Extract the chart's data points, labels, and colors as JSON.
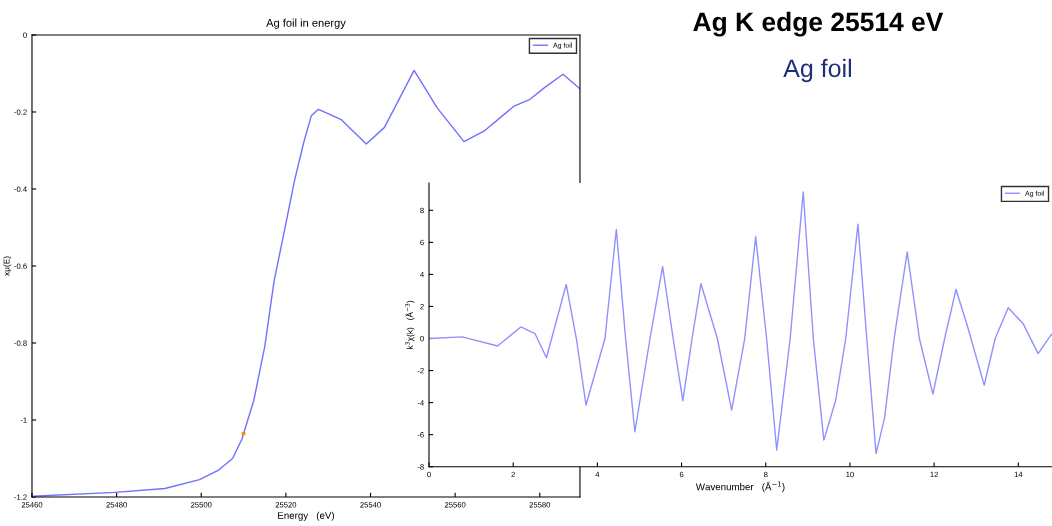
{
  "chart_data": [
    {
      "type": "line",
      "title": "Ag foil in energy",
      "xlabel": "Energy   (eV)",
      "ylabel": "xμ(E)",
      "xlim": [
        25460,
        25589.5
      ],
      "xticks": [
        25460,
        25480,
        25500,
        25520,
        25540,
        25560,
        25580
      ],
      "ylim": [
        -1.2,
        0
      ],
      "yticks": [
        -1.2,
        -1,
        -0.8,
        -0.6,
        -0.4,
        -0.2,
        0
      ],
      "legend": "top right",
      "grid": false,
      "series": [
        {
          "name": "Ag foil",
          "color": "#7070ff",
          "x": [
            25460.2,
            25479.6,
            25491.4,
            25499.6,
            25504.1,
            25507.4,
            25509.6,
            25512.4,
            25515,
            25517.2,
            25520,
            25522,
            25524.2,
            25526,
            25527.7,
            25533.1,
            25539,
            25543.3,
            25550.3,
            25555.8,
            25562.1,
            25566.8,
            25573.9,
            25577.7,
            25581.2,
            25585.5,
            25589.5
          ],
          "values": [
            -1.198,
            -1.188,
            -1.178,
            -1.155,
            -1.13,
            -1.1,
            -1.05,
            -0.95,
            -0.81,
            -0.64,
            -0.49,
            -0.38,
            -0.28,
            -0.21,
            -0.193,
            -0.22,
            -0.283,
            -0.24,
            -0.092,
            -0.19,
            -0.277,
            -0.25,
            -0.185,
            -0.167,
            -0.136,
            -0.102,
            -0.14
          ]
        },
        {
          "type": "scatter",
          "color": "#ff8c00",
          "x": [
            25510
          ],
          "values": [
            -1.035
          ]
        }
      ]
    },
    {
      "type": "line",
      "xlabel": "Wavenumber   (Å$^{−1}$)",
      "ylabel": "k$^{3}$χ(k)   (Å$^{−3}$)",
      "xlim": [
        0,
        14.8
      ],
      "xticks": [
        0,
        2,
        4,
        6,
        8,
        10,
        12,
        14
      ],
      "ylim": [
        -8,
        9.7
      ],
      "yticks": [
        -8,
        -6,
        -4,
        -2,
        0,
        2,
        4,
        6,
        8
      ],
      "legend": "top right",
      "grid": false,
      "series": [
        {
          "name": "Ag foil",
          "color": "#9090ff",
          "x": [
            0,
            0.79,
            1.63,
            2.18,
            2.52,
            2.79,
            3.26,
            3.5,
            3.73,
            4.18,
            4.45,
            4.67,
            4.89,
            5.25,
            5.55,
            5.8,
            6.03,
            6.25,
            6.46,
            6.85,
            7.19,
            7.5,
            7.76,
            8.02,
            8.26,
            8.58,
            8.89,
            9.13,
            9.38,
            9.66,
            9.9,
            10.19,
            10.4,
            10.62,
            10.82,
            11.05,
            11.36,
            11.65,
            11.97,
            12.25,
            12.52,
            12.79,
            13.19,
            13.45,
            13.76,
            14.12,
            14.47,
            14.79
          ],
          "values": [
            0,
            0.1,
            -0.47,
            0.72,
            0.3,
            -1.2,
            3.37,
            0,
            -4.15,
            0,
            6.8,
            0,
            -5.82,
            0,
            4.49,
            0,
            -3.87,
            0,
            3.42,
            0,
            -4.47,
            0,
            6.36,
            0,
            -6.96,
            0,
            9.14,
            0,
            -6.34,
            -3.87,
            0,
            7.14,
            0,
            -7.17,
            -5.0,
            0,
            5.4,
            0,
            -3.47,
            0,
            3.06,
            0.78,
            -2.91,
            0,
            1.92,
            0.9,
            -0.94,
            0.27
          ]
        }
      ]
    },
    {
      "type": "other",
      "title": "Ag K edge 25514 eV",
      "subtitle": "Ag foil"
    }
  ]
}
